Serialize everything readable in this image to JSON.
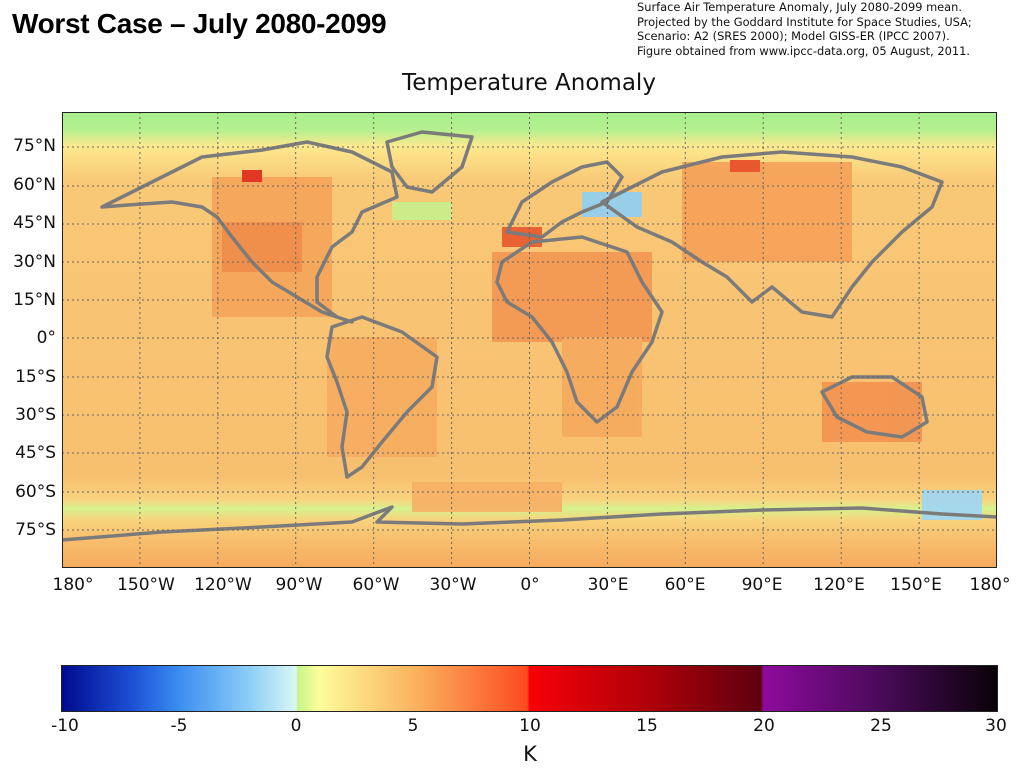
{
  "slide": {
    "title": "Worst Case – July 2080-2099"
  },
  "source_note": {
    "lines": [
      "Surface Air Temperature Anomaly, July 2080-2099 mean.",
      "Projected by the Goddard Institute for Space Studies, USA;",
      "Scenario: A2 (SRES 2000); Model GISS-ER (IPCC 2007).",
      "Figure obtained from www.ipcc-data.org, 05 August, 2011."
    ]
  },
  "chart": {
    "title": "Temperature Anomaly",
    "lat_labels": [
      "75°N",
      "60°N",
      "45°N",
      "30°N",
      "15°N",
      "0°",
      "15°S",
      "30°S",
      "45°S",
      "60°S",
      "75°S"
    ],
    "lon_labels": [
      "180°",
      "150°W",
      "120°W",
      "90°W",
      "60°W",
      "30°W",
      "0°",
      "30°E",
      "60°E",
      "90°E",
      "120°E",
      "150°E",
      "180°"
    ],
    "colors": {
      "ocean_base": "#f7c670",
      "polar_band": "#a9ef8f",
      "land_outline": "#7b7b7b",
      "grid": "#666666"
    }
  },
  "colorbar": {
    "ticks": [
      "-10",
      "-5",
      "0",
      "5",
      "10",
      "15",
      "20",
      "25",
      "30"
    ],
    "unit": "K",
    "range": [
      -10,
      30
    ],
    "stops": [
      {
        "value": -10,
        "color": "#000a8e"
      },
      {
        "value": -7,
        "color": "#1c50d6"
      },
      {
        "value": -5,
        "color": "#3b8df0"
      },
      {
        "value": -2,
        "color": "#8ccdf8"
      },
      {
        "value": 0,
        "color": "#d9f7f5"
      },
      {
        "value": 0.1,
        "color": "#c7f58a"
      },
      {
        "value": 1,
        "color": "#fdfd9c"
      },
      {
        "value": 5,
        "color": "#fbb45f"
      },
      {
        "value": 9.9,
        "color": "#fb4b1f"
      },
      {
        "value": 10,
        "color": "#f70008"
      },
      {
        "value": 15,
        "color": "#b00008"
      },
      {
        "value": 19.9,
        "color": "#5f0010"
      },
      {
        "value": 20,
        "color": "#8e0a9e"
      },
      {
        "value": 25,
        "color": "#4a0a5a"
      },
      {
        "value": 30,
        "color": "#0a0208"
      }
    ]
  }
}
